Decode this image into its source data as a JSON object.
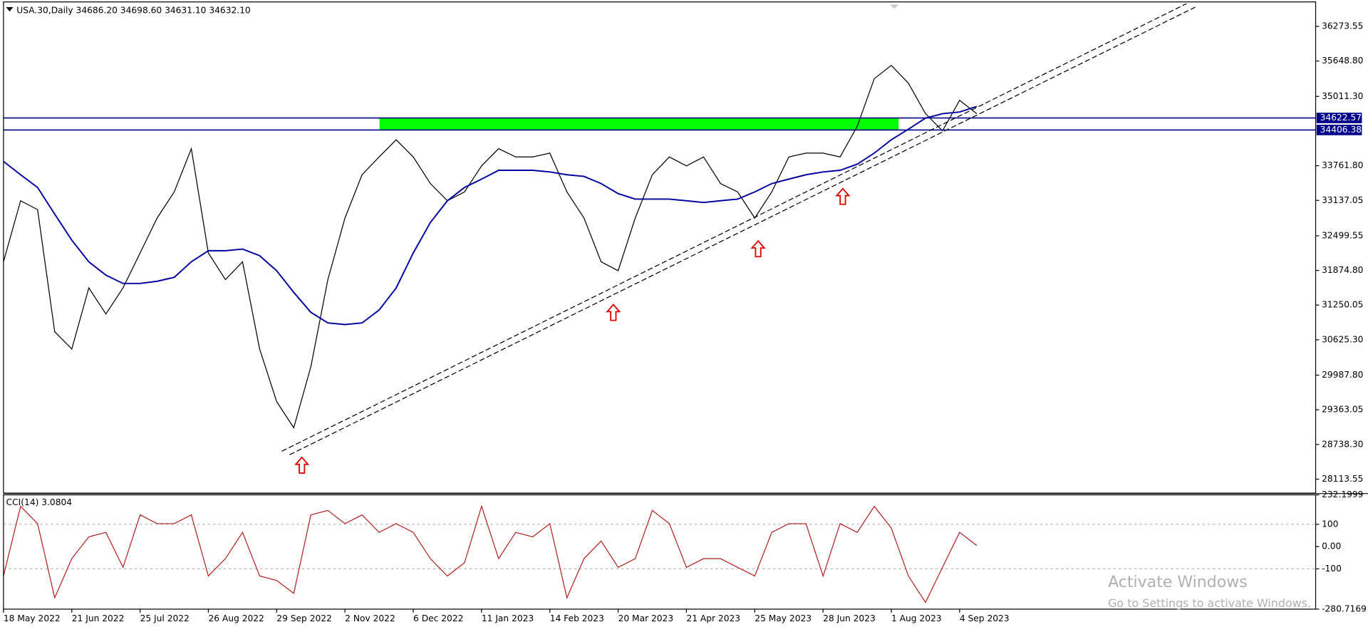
{
  "chart_data": [
    {
      "type": "line",
      "title": "USA.30,Daily  34686.20 34698.60 34631.10 34632.10",
      "categories": [
        "18 May 2022",
        null,
        null,
        null,
        "21 Jun 2022",
        null,
        null,
        null,
        "25 Jul 2022",
        null,
        null,
        null,
        "26 Aug 2022",
        null,
        null,
        null,
        "29 Sep 2022",
        null,
        null,
        null,
        "2 Nov 2022",
        null,
        null,
        null,
        "6 Dec 2022",
        null,
        null,
        null,
        "11 Jan 2023",
        null,
        null,
        null,
        "14 Feb 2023",
        null,
        null,
        null,
        "20 Mar 2023",
        null,
        null,
        null,
        "21 Apr 2023",
        null,
        null,
        null,
        "25 May 2023",
        null,
        null,
        null,
        "28 Jun 2023",
        null,
        null,
        null,
        "1 Aug 2023",
        null,
        null,
        null,
        "4 Sep 2023",
        null
      ],
      "series": [
        {
          "color": "#000000",
          "values": [
            32030,
            33130,
            32970,
            30770,
            30460,
            31560,
            31090,
            31560,
            32190,
            32820,
            33290,
            34070,
            32190,
            31710,
            32030,
            30460,
            29510,
            29040,
            30140,
            31710,
            32820,
            33600,
            33920,
            34230,
            33920,
            33440,
            33130,
            33290,
            33760,
            34070,
            33920,
            33920,
            33990,
            33290,
            32820,
            32030,
            31870,
            32820,
            33600,
            33920,
            33760,
            33920,
            33440,
            33290,
            32820,
            33290,
            33920,
            33990,
            33990,
            33920,
            34470,
            35330,
            35570,
            35250,
            34700,
            34390,
            34940,
            34700
          ]
        },
        {
          "color": "#0000a0",
          "values": [
            33840,
            33600,
            33370,
            32890,
            32420,
            32030,
            31790,
            31640,
            31640,
            31680,
            31750,
            32030,
            32230,
            32230,
            32260,
            32140,
            31870,
            31480,
            31120,
            30930,
            30900,
            30930,
            31160,
            31560,
            32190,
            32740,
            33130,
            33370,
            33520,
            33680,
            33680,
            33680,
            33650,
            33600,
            33570,
            33440,
            33260,
            33160,
            33160,
            33160,
            33130,
            33100,
            33130,
            33160,
            33290,
            33440,
            33520,
            33600,
            33650,
            33680,
            33790,
            33990,
            34230,
            34420,
            34620,
            34700,
            34730,
            34830
          ]
        }
      ],
      "hlines": [
        34622.57,
        34406.38
      ],
      "hline_color": "#00008b",
      "zone_color": "#00ff00",
      "ylim": [
        27862,
        36714
      ],
      "yticks": [
        {
          "value": 36273.55,
          "label": "36273.55"
        },
        {
          "value": 35648.8,
          "label": "35648.80"
        },
        {
          "value": 35011.3,
          "label": "35011.30"
        },
        {
          "value": 33761.8,
          "label": "33761.80"
        },
        {
          "value": 33137.05,
          "label": "33137.05"
        },
        {
          "value": 32499.55,
          "label": "32499.55"
        },
        {
          "value": 31874.8,
          "label": "31874.80"
        },
        {
          "value": 31250.05,
          "label": "31250.05"
        },
        {
          "value": 30625.3,
          "label": "30625.30"
        },
        {
          "value": 29987.8,
          "label": "29987.80"
        },
        {
          "value": 29363.05,
          "label": "29363.05"
        },
        {
          "value": 28738.3,
          "label": "28738.30"
        },
        {
          "value": 28113.55,
          "label": "28113.55"
        }
      ]
    },
    {
      "type": "line",
      "title": "CCI(14) 3.0804",
      "color": "#b22222",
      "values": [
        -132,
        181,
        103,
        -230,
        -54,
        44,
        64,
        -93,
        142,
        103,
        103,
        142,
        -132,
        -54,
        64,
        -132,
        -152,
        -210,
        142,
        162,
        103,
        142,
        64,
        103,
        64,
        -54,
        -132,
        -73,
        181,
        -54,
        64,
        44,
        103,
        -230,
        -54,
        25,
        -93,
        -54,
        162,
        103,
        -93,
        -54,
        -54,
        -93,
        -132,
        64,
        103,
        103,
        -132,
        103,
        64,
        181,
        83,
        -132,
        -250,
        -93,
        64,
        5
      ],
      "ylim": [
        -280.7169,
        232.1999
      ],
      "yticks": [
        232.1999,
        100,
        {
          "value": 0,
          "label": "0.00"
        },
        -100,
        -280.7169
      ]
    }
  ],
  "watermark": {
    "title": "Activate Windows",
    "subtitle": "Go to Settings to activate Windows."
  }
}
